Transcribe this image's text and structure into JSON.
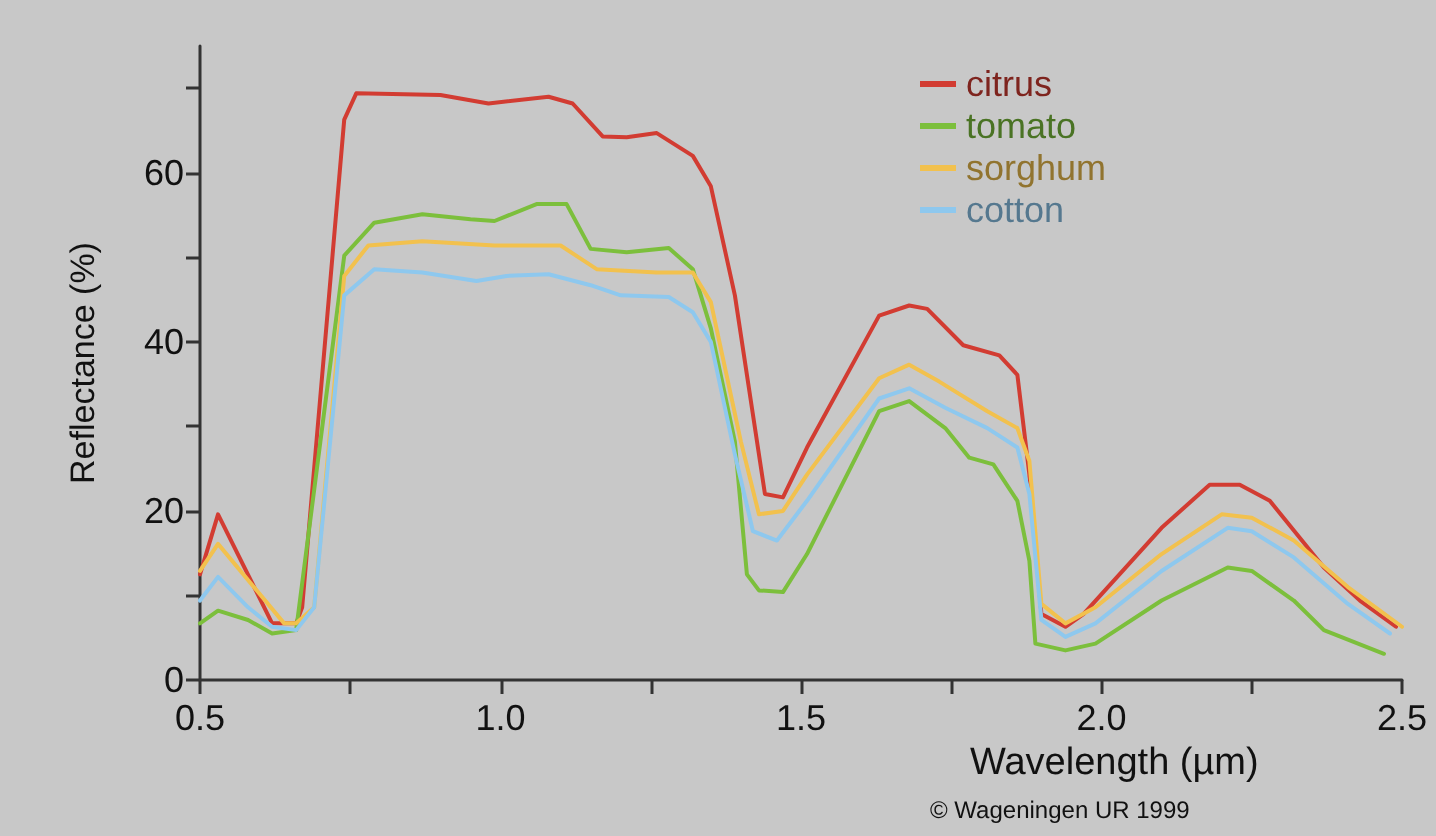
{
  "chart_data": {
    "type": "line",
    "xlabel": "Wavelength (µm)",
    "ylabel": "Reflectance (%)",
    "annotations": [
      "© Wageningen UR 1999"
    ],
    "xlim": [
      0.5,
      2.5
    ],
    "xticks": [
      {
        "value": 0.5,
        "label": "0.5"
      },
      {
        "value": 0.75,
        "label": null
      },
      {
        "value": 1,
        "label": "1.0"
      },
      {
        "value": 1.25,
        "label": null
      },
      {
        "value": 1.5,
        "label": "1.5"
      },
      {
        "value": 1.75,
        "label": null
      },
      {
        "value": 2,
        "label": "2.0"
      },
      {
        "value": 2.25,
        "label": null
      },
      {
        "value": 2.5,
        "label": "2.5"
      }
    ],
    "ylim": [
      0,
      75
    ],
    "yticks": [
      0,
      {
        "value": 10,
        "label": null
      },
      20,
      {
        "value": 30,
        "label": null
      },
      40,
      {
        "value": 50,
        "label": null
      },
      60,
      {
        "value": 70,
        "label": null
      }
    ],
    "grid": false,
    "legend": "top",
    "marker": "none",
    "line_style": "solid",
    "series": [
      {
        "name": "citrus",
        "color": "#d23c32",
        "x": [
          0.5,
          0.53,
          0.62,
          0.66,
          0.67,
          0.74,
          0.76,
          0.9,
          0.98,
          1.08,
          1.12,
          1.17,
          1.21,
          1.26,
          1.32,
          1.35,
          1.39,
          1.42,
          1.44,
          1.47,
          1.51,
          1.63,
          1.68,
          1.71,
          1.77,
          1.83,
          1.86,
          1.88,
          1.9,
          1.94,
          1.97,
          2.1,
          2.18,
          2.23,
          2.28,
          2.37,
          2.43,
          2.49
        ],
        "values": [
          12.5,
          19.6,
          6.7,
          6.7,
          8.6,
          66.3,
          69.4,
          69.2,
          68.2,
          69.0,
          68.2,
          64.3,
          64.2,
          64.7,
          62.0,
          58.4,
          45.5,
          31.4,
          22.0,
          21.6,
          27.5,
          43.1,
          44.3,
          43.9,
          39.6,
          38.4,
          36.1,
          24.3,
          7.8,
          6.3,
          7.8,
          18.0,
          23.1,
          23.1,
          21.2,
          13.3,
          9.4,
          6.3
        ]
      },
      {
        "name": "tomato",
        "color": "#7cbf3c",
        "x": [
          0.5,
          0.53,
          0.58,
          0.62,
          0.66,
          0.74,
          0.79,
          0.87,
          0.95,
          0.99,
          1.06,
          1.11,
          1.15,
          1.21,
          1.28,
          1.32,
          1.35,
          1.39,
          1.41,
          1.43,
          1.47,
          1.51,
          1.63,
          1.68,
          1.74,
          1.78,
          1.82,
          1.86,
          1.88,
          1.89,
          1.94,
          1.99,
          2.1,
          2.21,
          2.25,
          2.32,
          2.37,
          2.47
        ],
        "values": [
          6.7,
          8.2,
          7.1,
          5.5,
          5.9,
          50.2,
          54.1,
          55.1,
          54.5,
          54.3,
          56.3,
          56.3,
          51.0,
          50.6,
          51.1,
          48.6,
          41.6,
          28.2,
          12.5,
          10.6,
          10.4,
          14.9,
          31.8,
          33.0,
          29.8,
          26.3,
          25.5,
          21.2,
          14.1,
          4.3,
          3.5,
          4.3,
          9.4,
          13.3,
          12.9,
          9.4,
          5.9,
          3.1
        ]
      },
      {
        "name": "sorghum",
        "color": "#f2c14e",
        "x": [
          0.5,
          0.53,
          0.64,
          0.66,
          0.69,
          0.74,
          0.78,
          0.87,
          0.99,
          1.1,
          1.16,
          1.26,
          1.32,
          1.35,
          1.4,
          1.43,
          1.47,
          1.51,
          1.63,
          1.68,
          1.73,
          1.81,
          1.86,
          1.88,
          1.9,
          1.94,
          1.99,
          2.1,
          2.2,
          2.25,
          2.32,
          2.41,
          2.5
        ],
        "values": [
          12.9,
          16.1,
          6.7,
          6.7,
          8.6,
          47.8,
          51.4,
          51.9,
          51.4,
          51.4,
          48.6,
          48.2,
          48.2,
          44.7,
          28.2,
          19.6,
          20.0,
          24.3,
          35.7,
          37.3,
          35.3,
          31.8,
          29.8,
          25.9,
          9.0,
          6.7,
          8.6,
          14.9,
          19.6,
          19.2,
          16.5,
          11.0,
          6.3
        ]
      },
      {
        "name": "cotton",
        "color": "#8ec8ee",
        "x": [
          0.5,
          0.53,
          0.58,
          0.62,
          0.66,
          0.69,
          0.74,
          0.79,
          0.87,
          0.96,
          1.01,
          1.08,
          1.15,
          1.2,
          1.28,
          1.32,
          1.35,
          1.39,
          1.42,
          1.46,
          1.51,
          1.63,
          1.68,
          1.74,
          1.81,
          1.86,
          1.88,
          1.9,
          1.94,
          1.99,
          2.1,
          2.21,
          2.25,
          2.32,
          2.41,
          2.48
        ],
        "values": [
          9.4,
          12.2,
          8.6,
          6.3,
          5.9,
          8.6,
          45.5,
          48.6,
          48.2,
          47.2,
          47.8,
          48.0,
          46.7,
          45.5,
          45.3,
          43.5,
          40.0,
          26.7,
          17.6,
          16.5,
          21.2,
          33.3,
          34.5,
          32.2,
          29.8,
          27.5,
          22.0,
          7.1,
          5.1,
          6.7,
          12.9,
          18.0,
          17.6,
          14.5,
          9.0,
          5.5
        ]
      }
    ]
  }
}
